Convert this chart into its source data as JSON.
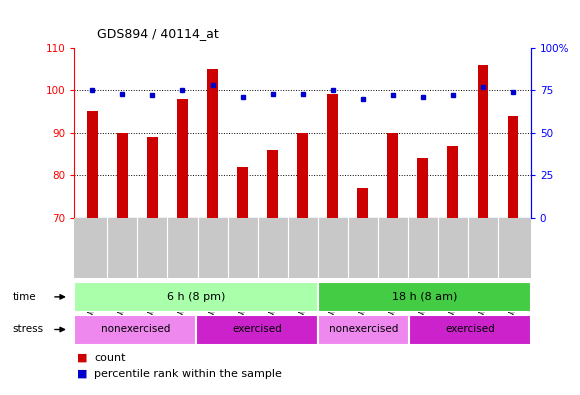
{
  "title": "GDS894 / 40114_at",
  "samples": [
    "GSM32066",
    "GSM32097",
    "GSM32098",
    "GSM32099",
    "GSM32100",
    "GSM32101",
    "GSM32102",
    "GSM32103",
    "GSM32104",
    "GSM32105",
    "GSM32106",
    "GSM32107",
    "GSM32108",
    "GSM32109",
    "GSM32110"
  ],
  "counts": [
    95,
    90,
    89,
    98,
    105,
    82,
    86,
    90,
    99,
    77,
    90,
    84,
    87,
    106,
    94
  ],
  "percentile_ranks": [
    75,
    73,
    72,
    75,
    78,
    71,
    73,
    73,
    75,
    70,
    72,
    71,
    72,
    77,
    74
  ],
  "ylim_left": [
    70,
    110
  ],
  "ylim_right": [
    0,
    100
  ],
  "yticks_left": [
    70,
    80,
    90,
    100,
    110
  ],
  "yticks_right": [
    0,
    25,
    50,
    75,
    100
  ],
  "bar_color": "#cc0000",
  "dot_color": "#0000cc",
  "plot_bg": "#ffffff",
  "tick_label_bg": "#c8c8c8",
  "time_colors": [
    "#aaffaa",
    "#44cc44"
  ],
  "time_labels": [
    "6 h (8 pm)",
    "18 h (8 am)"
  ],
  "time_splits": [
    0,
    8,
    15
  ],
  "stress_colors": [
    "#ee88ee",
    "#cc22cc",
    "#ee88ee",
    "#cc22cc"
  ],
  "stress_labels": [
    "nonexercised",
    "exercised",
    "nonexercised",
    "exercised"
  ],
  "stress_splits": [
    0,
    4,
    8,
    11,
    15
  ],
  "legend_count_color": "#cc0000",
  "legend_pct_color": "#0000cc",
  "legend_count_label": "count",
  "legend_pct_label": "percentile rank within the sample",
  "bar_width": 0.35
}
